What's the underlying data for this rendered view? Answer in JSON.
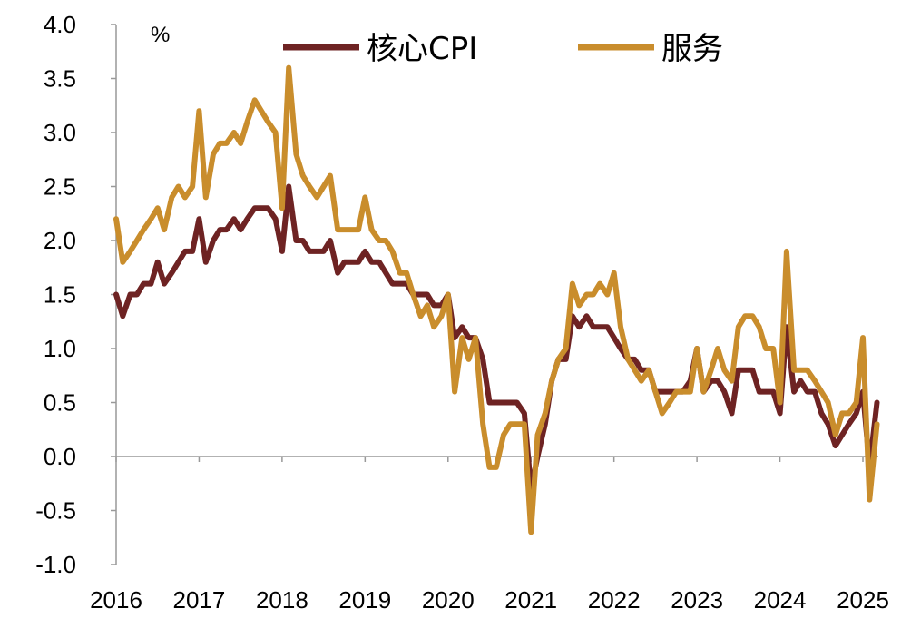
{
  "chart_data": {
    "type": "line",
    "unit_label": "%",
    "ylim": [
      -1.0,
      4.0
    ],
    "y_ticks": [
      "4.0",
      "3.5",
      "3.0",
      "2.5",
      "2.0",
      "1.5",
      "1.0",
      "0.5",
      "0.0",
      "-0.5",
      "-1.0"
    ],
    "y_tick_values": [
      4.0,
      3.5,
      3.0,
      2.5,
      2.0,
      1.5,
      1.0,
      0.5,
      0.0,
      -0.5,
      -1.0
    ],
    "x_ticks": [
      "2016",
      "2017",
      "2018",
      "2019",
      "2020",
      "2021",
      "2022",
      "2023",
      "2024",
      "2025"
    ],
    "x_tick_values": [
      2016,
      2017,
      2018,
      2019,
      2020,
      2021,
      2022,
      2023,
      2024,
      2025
    ],
    "x_range": [
      2016,
      2025.2
    ],
    "legend_position": "top",
    "series": [
      {
        "name": "核心CPI",
        "color": "#6e2323",
        "points": [
          [
            2016.0,
            1.5
          ],
          [
            2016.08,
            1.3
          ],
          [
            2016.17,
            1.5
          ],
          [
            2016.25,
            1.5
          ],
          [
            2016.33,
            1.6
          ],
          [
            2016.42,
            1.6
          ],
          [
            2016.5,
            1.8
          ],
          [
            2016.58,
            1.6
          ],
          [
            2016.67,
            1.7
          ],
          [
            2016.75,
            1.8
          ],
          [
            2016.83,
            1.9
          ],
          [
            2016.92,
            1.9
          ],
          [
            2017.0,
            2.2
          ],
          [
            2017.08,
            1.8
          ],
          [
            2017.17,
            2.0
          ],
          [
            2017.25,
            2.1
          ],
          [
            2017.33,
            2.1
          ],
          [
            2017.42,
            2.2
          ],
          [
            2017.5,
            2.1
          ],
          [
            2017.58,
            2.2
          ],
          [
            2017.67,
            2.3
          ],
          [
            2017.75,
            2.3
          ],
          [
            2017.83,
            2.3
          ],
          [
            2017.92,
            2.2
          ],
          [
            2018.0,
            1.9
          ],
          [
            2018.08,
            2.5
          ],
          [
            2018.17,
            2.0
          ],
          [
            2018.25,
            2.0
          ],
          [
            2018.33,
            1.9
          ],
          [
            2018.42,
            1.9
          ],
          [
            2018.5,
            1.9
          ],
          [
            2018.58,
            2.0
          ],
          [
            2018.67,
            1.7
          ],
          [
            2018.75,
            1.8
          ],
          [
            2018.83,
            1.8
          ],
          [
            2018.92,
            1.8
          ],
          [
            2019.0,
            1.9
          ],
          [
            2019.08,
            1.8
          ],
          [
            2019.17,
            1.8
          ],
          [
            2019.25,
            1.7
          ],
          [
            2019.33,
            1.6
          ],
          [
            2019.42,
            1.6
          ],
          [
            2019.5,
            1.6
          ],
          [
            2019.58,
            1.5
          ],
          [
            2019.67,
            1.5
          ],
          [
            2019.75,
            1.5
          ],
          [
            2019.83,
            1.4
          ],
          [
            2019.92,
            1.4
          ],
          [
            2020.0,
            1.5
          ],
          [
            2020.08,
            1.1
          ],
          [
            2020.17,
            1.2
          ],
          [
            2020.25,
            1.1
          ],
          [
            2020.33,
            1.1
          ],
          [
            2020.42,
            0.9
          ],
          [
            2020.5,
            0.5
          ],
          [
            2020.58,
            0.5
          ],
          [
            2020.67,
            0.5
          ],
          [
            2020.75,
            0.5
          ],
          [
            2020.83,
            0.5
          ],
          [
            2020.92,
            0.4
          ],
          [
            2021.0,
            -0.3
          ],
          [
            2021.08,
            0.0
          ],
          [
            2021.17,
            0.3
          ],
          [
            2021.25,
            0.7
          ],
          [
            2021.33,
            0.9
          ],
          [
            2021.42,
            0.9
          ],
          [
            2021.5,
            1.3
          ],
          [
            2021.58,
            1.2
          ],
          [
            2021.67,
            1.3
          ],
          [
            2021.75,
            1.2
          ],
          [
            2021.83,
            1.2
          ],
          [
            2021.92,
            1.2
          ],
          [
            2022.0,
            1.1
          ],
          [
            2022.08,
            1.0
          ],
          [
            2022.17,
            0.9
          ],
          [
            2022.25,
            0.9
          ],
          [
            2022.33,
            0.8
          ],
          [
            2022.42,
            0.8
          ],
          [
            2022.5,
            0.6
          ],
          [
            2022.58,
            0.6
          ],
          [
            2022.67,
            0.6
          ],
          [
            2022.75,
            0.6
          ],
          [
            2022.83,
            0.6
          ],
          [
            2022.92,
            0.7
          ],
          [
            2023.0,
            1.0
          ],
          [
            2023.08,
            0.6
          ],
          [
            2023.17,
            0.7
          ],
          [
            2023.25,
            0.7
          ],
          [
            2023.33,
            0.6
          ],
          [
            2023.42,
            0.4
          ],
          [
            2023.5,
            0.8
          ],
          [
            2023.58,
            0.8
          ],
          [
            2023.67,
            0.8
          ],
          [
            2023.75,
            0.6
          ],
          [
            2023.83,
            0.6
          ],
          [
            2023.92,
            0.6
          ],
          [
            2024.0,
            0.4
          ],
          [
            2024.08,
            1.2
          ],
          [
            2024.17,
            0.6
          ],
          [
            2024.25,
            0.7
          ],
          [
            2024.33,
            0.6
          ],
          [
            2024.42,
            0.6
          ],
          [
            2024.5,
            0.4
          ],
          [
            2024.58,
            0.3
          ],
          [
            2024.67,
            0.1
          ],
          [
            2024.75,
            0.2
          ],
          [
            2024.83,
            0.3
          ],
          [
            2024.92,
            0.4
          ],
          [
            2025.0,
            0.6
          ],
          [
            2025.08,
            -0.1
          ],
          [
            2025.17,
            0.5
          ]
        ]
      },
      {
        "name": "服务",
        "color": "#c98d2c",
        "points": [
          [
            2016.0,
            2.2
          ],
          [
            2016.08,
            1.8
          ],
          [
            2016.17,
            1.9
          ],
          [
            2016.25,
            2.0
          ],
          [
            2016.33,
            2.1
          ],
          [
            2016.42,
            2.2
          ],
          [
            2016.5,
            2.3
          ],
          [
            2016.58,
            2.1
          ],
          [
            2016.67,
            2.4
          ],
          [
            2016.75,
            2.5
          ],
          [
            2016.83,
            2.4
          ],
          [
            2016.92,
            2.5
          ],
          [
            2017.0,
            3.2
          ],
          [
            2017.08,
            2.4
          ],
          [
            2017.17,
            2.8
          ],
          [
            2017.25,
            2.9
          ],
          [
            2017.33,
            2.9
          ],
          [
            2017.42,
            3.0
          ],
          [
            2017.5,
            2.9
          ],
          [
            2017.58,
            3.1
          ],
          [
            2017.67,
            3.3
          ],
          [
            2017.75,
            3.2
          ],
          [
            2017.83,
            3.1
          ],
          [
            2017.92,
            3.0
          ],
          [
            2018.0,
            2.3
          ],
          [
            2018.08,
            3.6
          ],
          [
            2018.17,
            2.8
          ],
          [
            2018.25,
            2.6
          ],
          [
            2018.33,
            2.5
          ],
          [
            2018.42,
            2.4
          ],
          [
            2018.5,
            2.5
          ],
          [
            2018.58,
            2.6
          ],
          [
            2018.67,
            2.1
          ],
          [
            2018.75,
            2.1
          ],
          [
            2018.83,
            2.1
          ],
          [
            2018.92,
            2.1
          ],
          [
            2019.0,
            2.4
          ],
          [
            2019.08,
            2.1
          ],
          [
            2019.17,
            2.0
          ],
          [
            2019.25,
            2.0
          ],
          [
            2019.33,
            1.9
          ],
          [
            2019.42,
            1.7
          ],
          [
            2019.5,
            1.7
          ],
          [
            2019.58,
            1.5
          ],
          [
            2019.67,
            1.3
          ],
          [
            2019.75,
            1.4
          ],
          [
            2019.83,
            1.2
          ],
          [
            2019.92,
            1.3
          ],
          [
            2020.0,
            1.5
          ],
          [
            2020.08,
            0.6
          ],
          [
            2020.17,
            1.1
          ],
          [
            2020.25,
            0.9
          ],
          [
            2020.33,
            1.1
          ],
          [
            2020.42,
            0.3
          ],
          [
            2020.5,
            -0.1
          ],
          [
            2020.58,
            -0.1
          ],
          [
            2020.67,
            0.2
          ],
          [
            2020.75,
            0.3
          ],
          [
            2020.83,
            0.3
          ],
          [
            2020.92,
            0.3
          ],
          [
            2021.0,
            -0.7
          ],
          [
            2021.08,
            0.2
          ],
          [
            2021.17,
            0.4
          ],
          [
            2021.25,
            0.7
          ],
          [
            2021.33,
            0.9
          ],
          [
            2021.42,
            1.0
          ],
          [
            2021.5,
            1.6
          ],
          [
            2021.58,
            1.4
          ],
          [
            2021.67,
            1.5
          ],
          [
            2021.75,
            1.5
          ],
          [
            2021.83,
            1.6
          ],
          [
            2021.92,
            1.5
          ],
          [
            2022.0,
            1.7
          ],
          [
            2022.08,
            1.2
          ],
          [
            2022.17,
            0.9
          ],
          [
            2022.25,
            0.8
          ],
          [
            2022.33,
            0.7
          ],
          [
            2022.42,
            0.8
          ],
          [
            2022.5,
            0.6
          ],
          [
            2022.58,
            0.4
          ],
          [
            2022.67,
            0.5
          ],
          [
            2022.75,
            0.6
          ],
          [
            2022.83,
            0.6
          ],
          [
            2022.92,
            0.6
          ],
          [
            2023.0,
            1.0
          ],
          [
            2023.08,
            0.6
          ],
          [
            2023.17,
            0.8
          ],
          [
            2023.25,
            1.0
          ],
          [
            2023.33,
            0.8
          ],
          [
            2023.42,
            0.7
          ],
          [
            2023.5,
            1.2
          ],
          [
            2023.58,
            1.3
          ],
          [
            2023.67,
            1.3
          ],
          [
            2023.75,
            1.2
          ],
          [
            2023.83,
            1.0
          ],
          [
            2023.92,
            1.0
          ],
          [
            2024.0,
            0.5
          ],
          [
            2024.08,
            1.9
          ],
          [
            2024.17,
            0.8
          ],
          [
            2024.25,
            0.8
          ],
          [
            2024.33,
            0.8
          ],
          [
            2024.42,
            0.7
          ],
          [
            2024.5,
            0.6
          ],
          [
            2024.58,
            0.5
          ],
          [
            2024.67,
            0.2
          ],
          [
            2024.75,
            0.4
          ],
          [
            2024.83,
            0.4
          ],
          [
            2024.92,
            0.5
          ],
          [
            2025.0,
            1.1
          ],
          [
            2025.08,
            -0.4
          ],
          [
            2025.17,
            0.3
          ]
        ]
      }
    ]
  }
}
